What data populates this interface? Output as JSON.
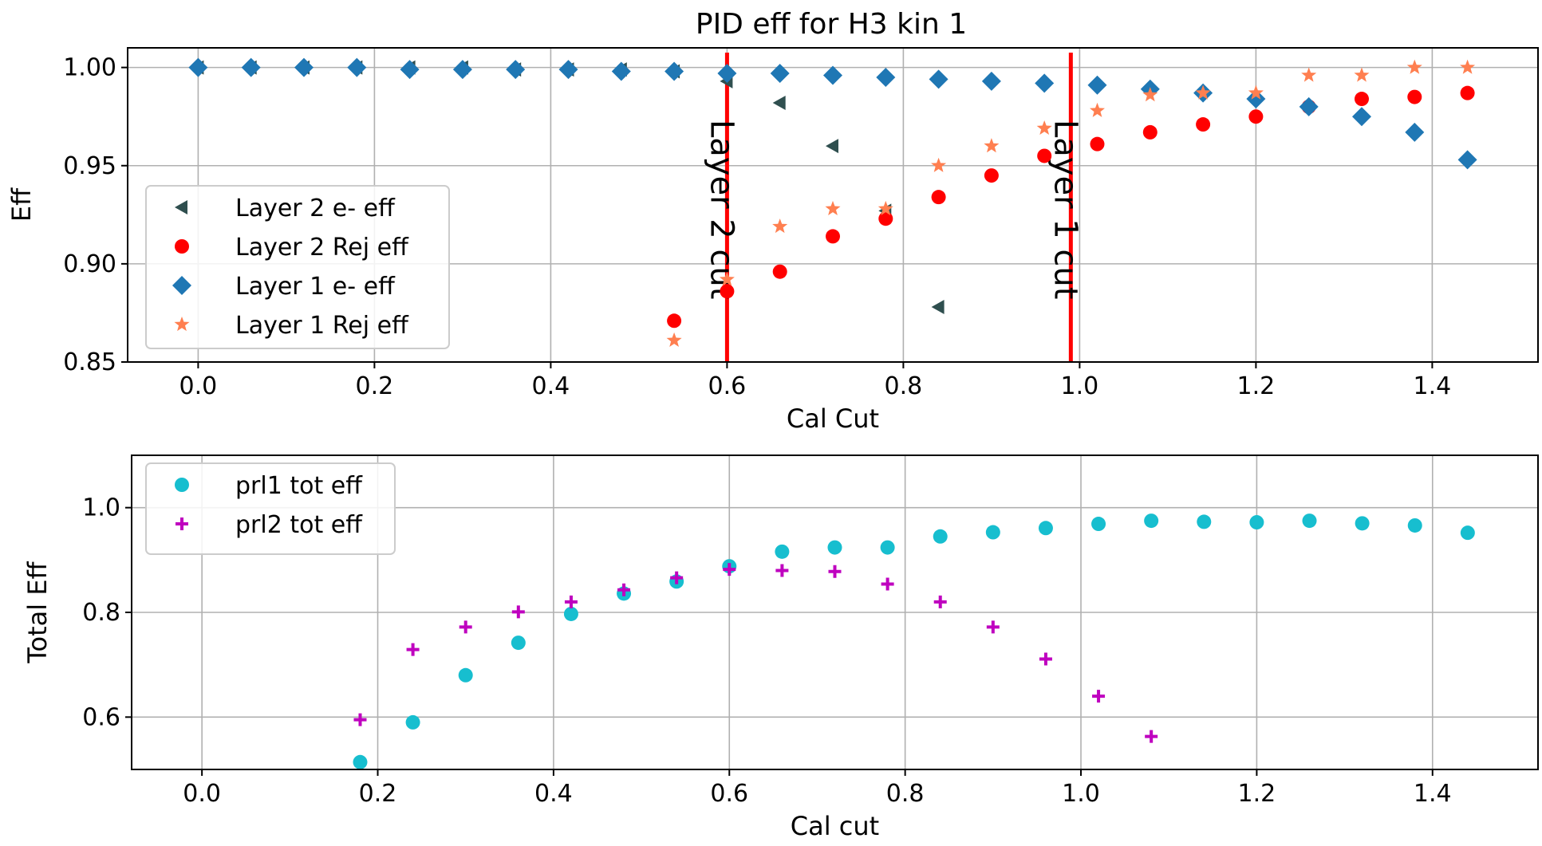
{
  "chart_data": [
    {
      "type": "scatter",
      "title": "PID eff for H3 kin 1",
      "xlabel": "Cal Cut",
      "ylabel": "Eff",
      "xlim": [
        -0.08,
        1.52
      ],
      "ylim": [
        0.85,
        1.01
      ],
      "xticks": [
        0.0,
        0.2,
        0.4,
        0.6,
        0.8,
        1.0,
        1.2,
        1.4
      ],
      "xtick_labels": [
        "0.0",
        "0.2",
        "0.4",
        "0.6",
        "0.8",
        "1.0",
        "1.2",
        "1.4"
      ],
      "yticks": [
        0.85,
        0.9,
        0.95,
        1.0
      ],
      "ytick_labels": [
        "0.85",
        "0.90",
        "0.95",
        "1.00"
      ],
      "grid": true,
      "legend_position": "lower-left",
      "series": [
        {
          "name": "Layer 2 e- eff",
          "marker": "triangle-left",
          "color": "#2f4f4f",
          "x": [
            0.0,
            0.06,
            0.12,
            0.18,
            0.24,
            0.3,
            0.36,
            0.42,
            0.48,
            0.54,
            0.6,
            0.66,
            0.72,
            0.78,
            0.84
          ],
          "y": [
            1.0,
            1.0,
            1.0,
            1.0,
            1.0,
            1.0,
            0.999,
            0.999,
            0.999,
            0.998,
            0.993,
            0.982,
            0.96,
            0.927,
            0.878
          ]
        },
        {
          "name": "Layer 2 Rej eff",
          "marker": "circle",
          "color": "#ff0000",
          "x": [
            0.54,
            0.6,
            0.66,
            0.72,
            0.78,
            0.84,
            0.9,
            0.96,
            1.02,
            1.08,
            1.14,
            1.2,
            1.26,
            1.32,
            1.38,
            1.44
          ],
          "y": [
            0.871,
            0.886,
            0.896,
            0.914,
            0.923,
            0.934,
            0.945,
            0.955,
            0.961,
            0.967,
            0.971,
            0.975,
            0.98,
            0.984,
            0.985,
            0.987
          ]
        },
        {
          "name": "Layer 1 e- eff",
          "marker": "diamond",
          "color": "#1f77b4",
          "x": [
            0.0,
            0.06,
            0.12,
            0.18,
            0.24,
            0.3,
            0.36,
            0.42,
            0.48,
            0.54,
            0.6,
            0.66,
            0.72,
            0.78,
            0.84,
            0.9,
            0.96,
            1.02,
            1.08,
            1.14,
            1.2,
            1.26,
            1.32,
            1.38,
            1.44
          ],
          "y": [
            1.0,
            1.0,
            1.0,
            1.0,
            0.999,
            0.999,
            0.999,
            0.999,
            0.998,
            0.998,
            0.997,
            0.997,
            0.996,
            0.995,
            0.994,
            0.993,
            0.992,
            0.991,
            0.989,
            0.987,
            0.984,
            0.98,
            0.975,
            0.967,
            0.953
          ]
        },
        {
          "name": "Layer 1 Rej eff",
          "marker": "star",
          "color": "#ff7f50",
          "x": [
            0.54,
            0.6,
            0.66,
            0.72,
            0.78,
            0.84,
            0.9,
            0.96,
            1.02,
            1.08,
            1.14,
            1.2,
            1.26,
            1.32,
            1.38,
            1.44
          ],
          "y": [
            0.861,
            0.892,
            0.919,
            0.928,
            0.928,
            0.95,
            0.96,
            0.969,
            0.978,
            0.986,
            0.987,
            0.987,
            0.996,
            0.996,
            1.0,
            1.0
          ]
        }
      ],
      "vlines": [
        {
          "x": 0.6,
          "label": "Layer 2 cut",
          "color": "#ff0000"
        },
        {
          "x": 0.99,
          "label": "Layer 1 cut",
          "color": "#ff0000"
        }
      ]
    },
    {
      "type": "scatter",
      "title": "",
      "xlabel": "Cal cut",
      "ylabel": "Total Eff",
      "xlim": [
        -0.08,
        1.52
      ],
      "ylim": [
        0.5,
        1.1
      ],
      "xticks": [
        0.0,
        0.2,
        0.4,
        0.6,
        0.8,
        1.0,
        1.2,
        1.4
      ],
      "xtick_labels": [
        "0.0",
        "0.2",
        "0.4",
        "0.6",
        "0.8",
        "1.0",
        "1.2",
        "1.4"
      ],
      "yticks": [
        0.6,
        0.8,
        1.0
      ],
      "ytick_labels": [
        "0.6",
        "0.8",
        "1.0"
      ],
      "grid": true,
      "legend_position": "top-left",
      "series": [
        {
          "name": "prl1 tot eff",
          "marker": "circle",
          "color": "#17becf",
          "x": [
            0.18,
            0.24,
            0.3,
            0.36,
            0.42,
            0.48,
            0.54,
            0.6,
            0.66,
            0.72,
            0.78,
            0.84,
            0.9,
            0.96,
            1.02,
            1.08,
            1.14,
            1.2,
            1.26,
            1.32,
            1.38,
            1.44
          ],
          "y": [
            0.514,
            0.59,
            0.68,
            0.742,
            0.797,
            0.836,
            0.859,
            0.888,
            0.916,
            0.924,
            0.924,
            0.945,
            0.953,
            0.961,
            0.969,
            0.975,
            0.973,
            0.972,
            0.975,
            0.97,
            0.966,
            0.952
          ]
        },
        {
          "name": "prl2 tot eff",
          "marker": "plus",
          "color": "#bf00bf",
          "x": [
            0.18,
            0.24,
            0.3,
            0.36,
            0.42,
            0.48,
            0.54,
            0.6,
            0.66,
            0.72,
            0.78,
            0.84,
            0.9,
            0.96,
            1.02,
            1.08
          ],
          "y": [
            0.595,
            0.729,
            0.772,
            0.801,
            0.82,
            0.843,
            0.866,
            0.882,
            0.88,
            0.878,
            0.854,
            0.82,
            0.772,
            0.711,
            0.64,
            0.563
          ]
        }
      ]
    }
  ]
}
